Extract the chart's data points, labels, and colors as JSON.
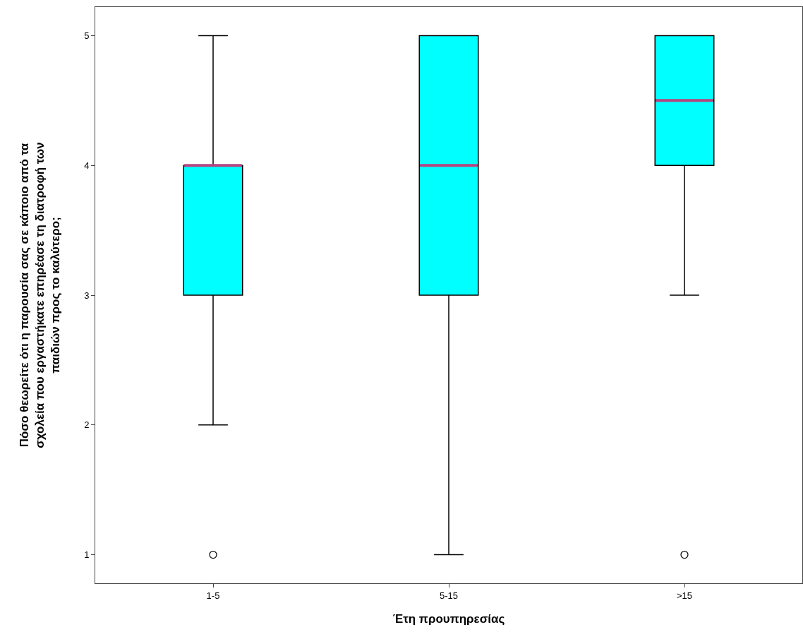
{
  "chart_data": {
    "type": "box",
    "xlabel": "Έτη προυπηρεσίας",
    "ylabel": "Πόσο θεωρείτε ότι η παρουσία σας σε κάποιο από τα\nσχολεία που εργαστήκατε επηρέασε τη διατροφή των\nπαιδιών προς το καλύτερο;",
    "categories": [
      "1-5",
      "5-15",
      ">15"
    ],
    "series": [
      {
        "color": "#00ffff",
        "boxes": [
          {
            "low": 2,
            "q1": 3,
            "median": 4,
            "q3": 4,
            "high": 5,
            "outliers": [
              1
            ]
          },
          {
            "low": 1,
            "q1": 3,
            "median": 4,
            "q3": 5,
            "high": 5
          },
          {
            "low": 3,
            "q1": 4,
            "median": 4.5,
            "q3": 5,
            "high": 5,
            "outliers": [
              1
            ]
          }
        ]
      }
    ],
    "ylim": [
      0.78,
      5.22
    ],
    "yticks": [
      1,
      2,
      3,
      4,
      5
    ],
    "grid": false
  }
}
